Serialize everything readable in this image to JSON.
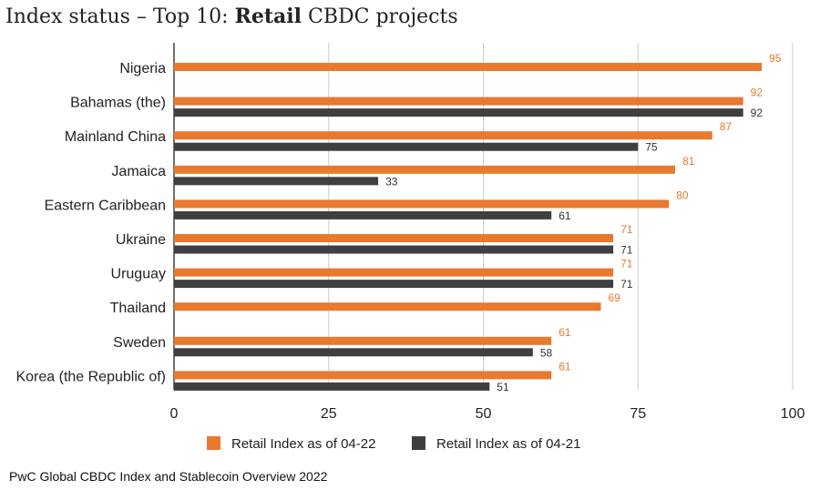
{
  "chart_data": {
    "type": "bar",
    "orientation": "horizontal",
    "title": {
      "regular_start": "Index status – Top 10: ",
      "bold": "Retail",
      "regular_end": " CBDC projects"
    },
    "categories": [
      "Nigeria",
      "Bahamas (the)",
      "Mainland China",
      "Jamaica",
      "Eastern Caribbean",
      "Ukraine",
      "Uruguay",
      "Thailand",
      "Sweden",
      "Korea (the Republic of)"
    ],
    "series": [
      {
        "name": "Retail Index as of 04-22",
        "color": "#e8792f",
        "values": [
          95,
          92,
          87,
          81,
          80,
          71,
          71,
          69,
          61,
          61
        ]
      },
      {
        "name": "Retail Index as of 04-21",
        "color": "#3f3f3f",
        "values": [
          null,
          92,
          75,
          33,
          61,
          71,
          71,
          null,
          58,
          51
        ]
      }
    ],
    "xlim": [
      0,
      100
    ],
    "xticks": [
      "0",
      "25",
      "50",
      "75",
      "100"
    ],
    "xtick_values": [
      0,
      25,
      50,
      75,
      100
    ],
    "grid": "vertical",
    "legend_position": "bottom-center",
    "source": "PwC Global CBDC Index and Stablecoin Overview 2022"
  }
}
